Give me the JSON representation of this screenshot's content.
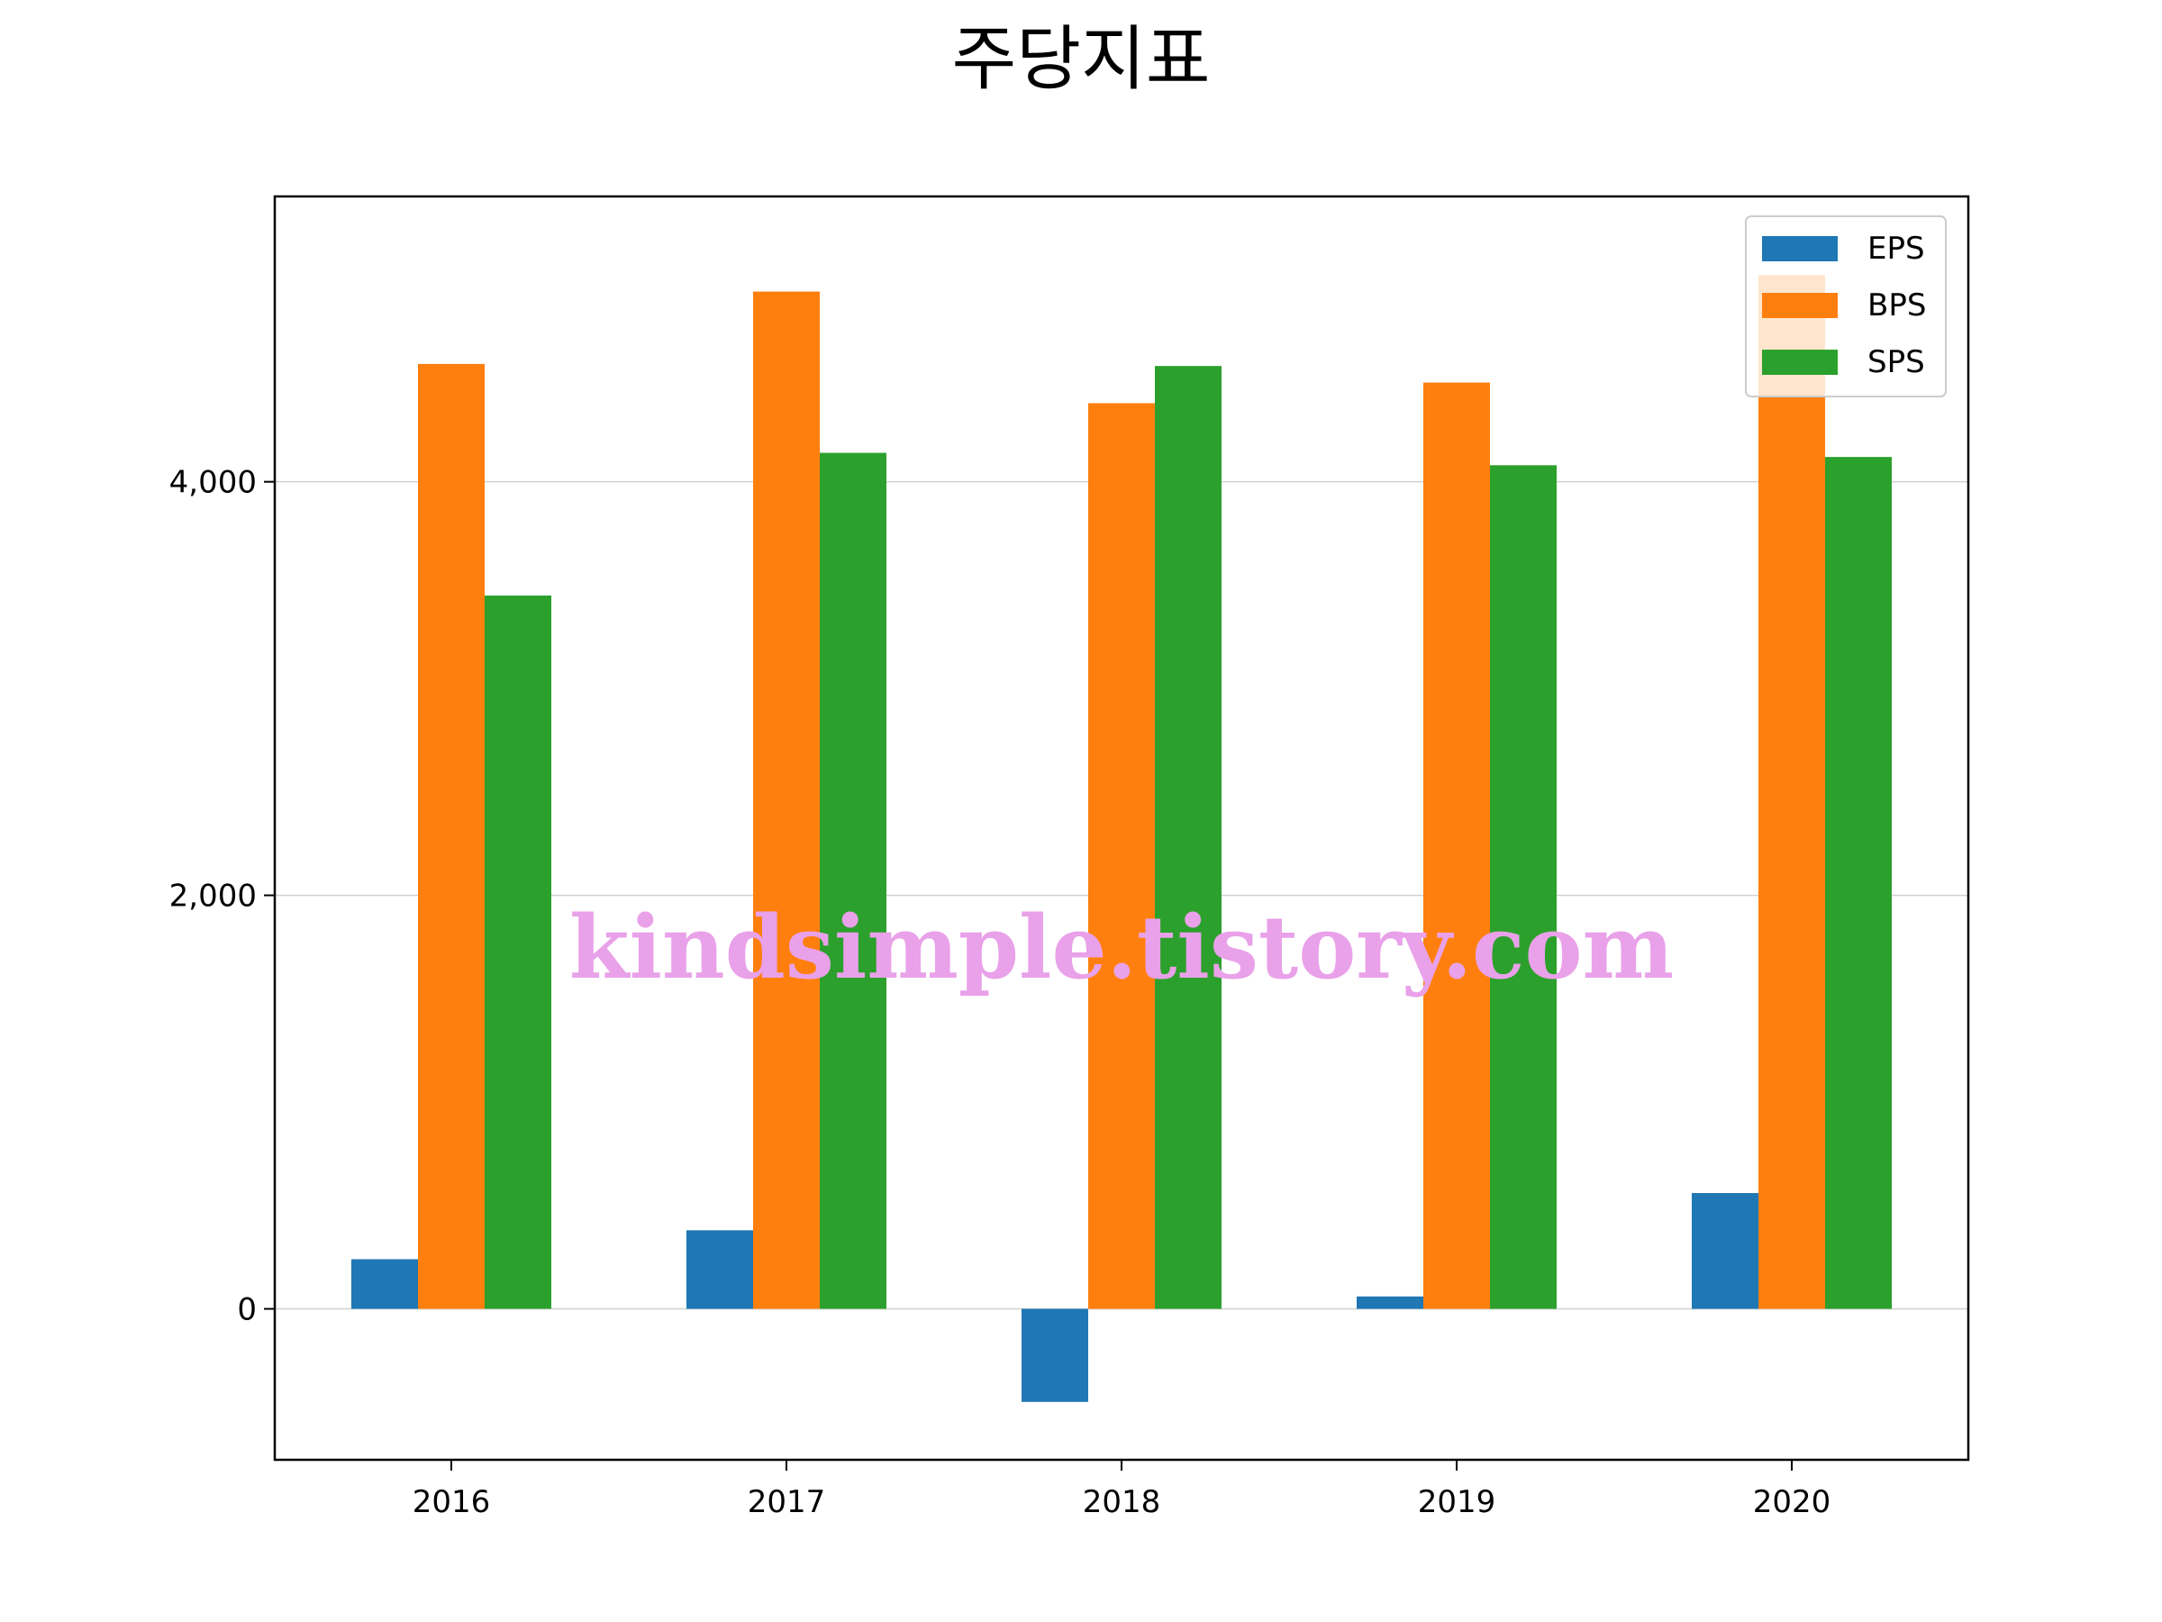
{
  "chart_data": {
    "type": "bar",
    "title": "주당지표",
    "xlabel": "",
    "ylabel": "",
    "categories": [
      "2016",
      "2017",
      "2018",
      "2019",
      "2020"
    ],
    "series": [
      {
        "name": "EPS",
        "color": "#1f77b4",
        "values": [
          240,
          380,
          -450,
          60,
          560
        ]
      },
      {
        "name": "BPS",
        "color": "#ff7f0e",
        "values": [
          4570,
          4920,
          4380,
          4480,
          5000
        ]
      },
      {
        "name": "SPS",
        "color": "#2ca02c",
        "values": [
          3450,
          4140,
          4560,
          4080,
          4120
        ]
      }
    ],
    "yticks": [
      0,
      2000,
      4000
    ],
    "ytick_labels": [
      "0",
      "2,000",
      "4,000"
    ],
    "ylim": [
      -730,
      5380
    ],
    "grid": "y",
    "legend_position": "top-right"
  },
  "watermark": "kindsimple.tistory.com"
}
